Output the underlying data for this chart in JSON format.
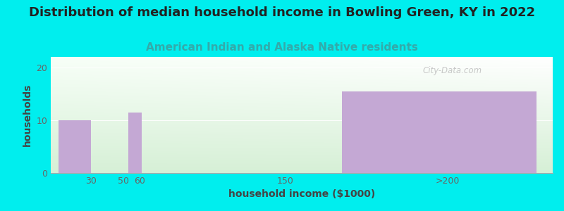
{
  "title": "Distribution of median household income in Bowling Green, KY in 2022",
  "subtitle": "American Indian and Alaska Native residents",
  "xlabel": "household income ($1000)",
  "ylabel": "households",
  "bg_color": "#00EEEE",
  "bar_color": "#C4A8D4",
  "categories": [
    "30",
    "50",
    "60",
    "150",
    ">200"
  ],
  "values": [
    10,
    0,
    11.5,
    0,
    15.5
  ],
  "bar_widths": [
    20,
    0,
    8,
    0,
    120
  ],
  "bar_positions": [
    20,
    50,
    57,
    150,
    245
  ],
  "xlim": [
    5,
    315
  ],
  "ylim": [
    0,
    22
  ],
  "yticks": [
    0,
    10,
    20
  ],
  "xtick_positions": [
    30,
    50,
    60,
    150,
    250
  ],
  "xtick_labels": [
    "30",
    "50",
    "60",
    "150",
    ">200"
  ],
  "title_fontsize": 13,
  "subtitle_fontsize": 11,
  "axis_label_fontsize": 10,
  "tick_fontsize": 9,
  "title_color": "#222222",
  "subtitle_color": "#33AAAA",
  "axis_label_color": "#444444",
  "tick_color": "#666666",
  "watermark": "City-Data.com",
  "grid_color": "#ffffff",
  "grad_top": "#f8fff8",
  "grad_bottom": "#d8efd8",
  "grad_right": "#eaf8f8"
}
